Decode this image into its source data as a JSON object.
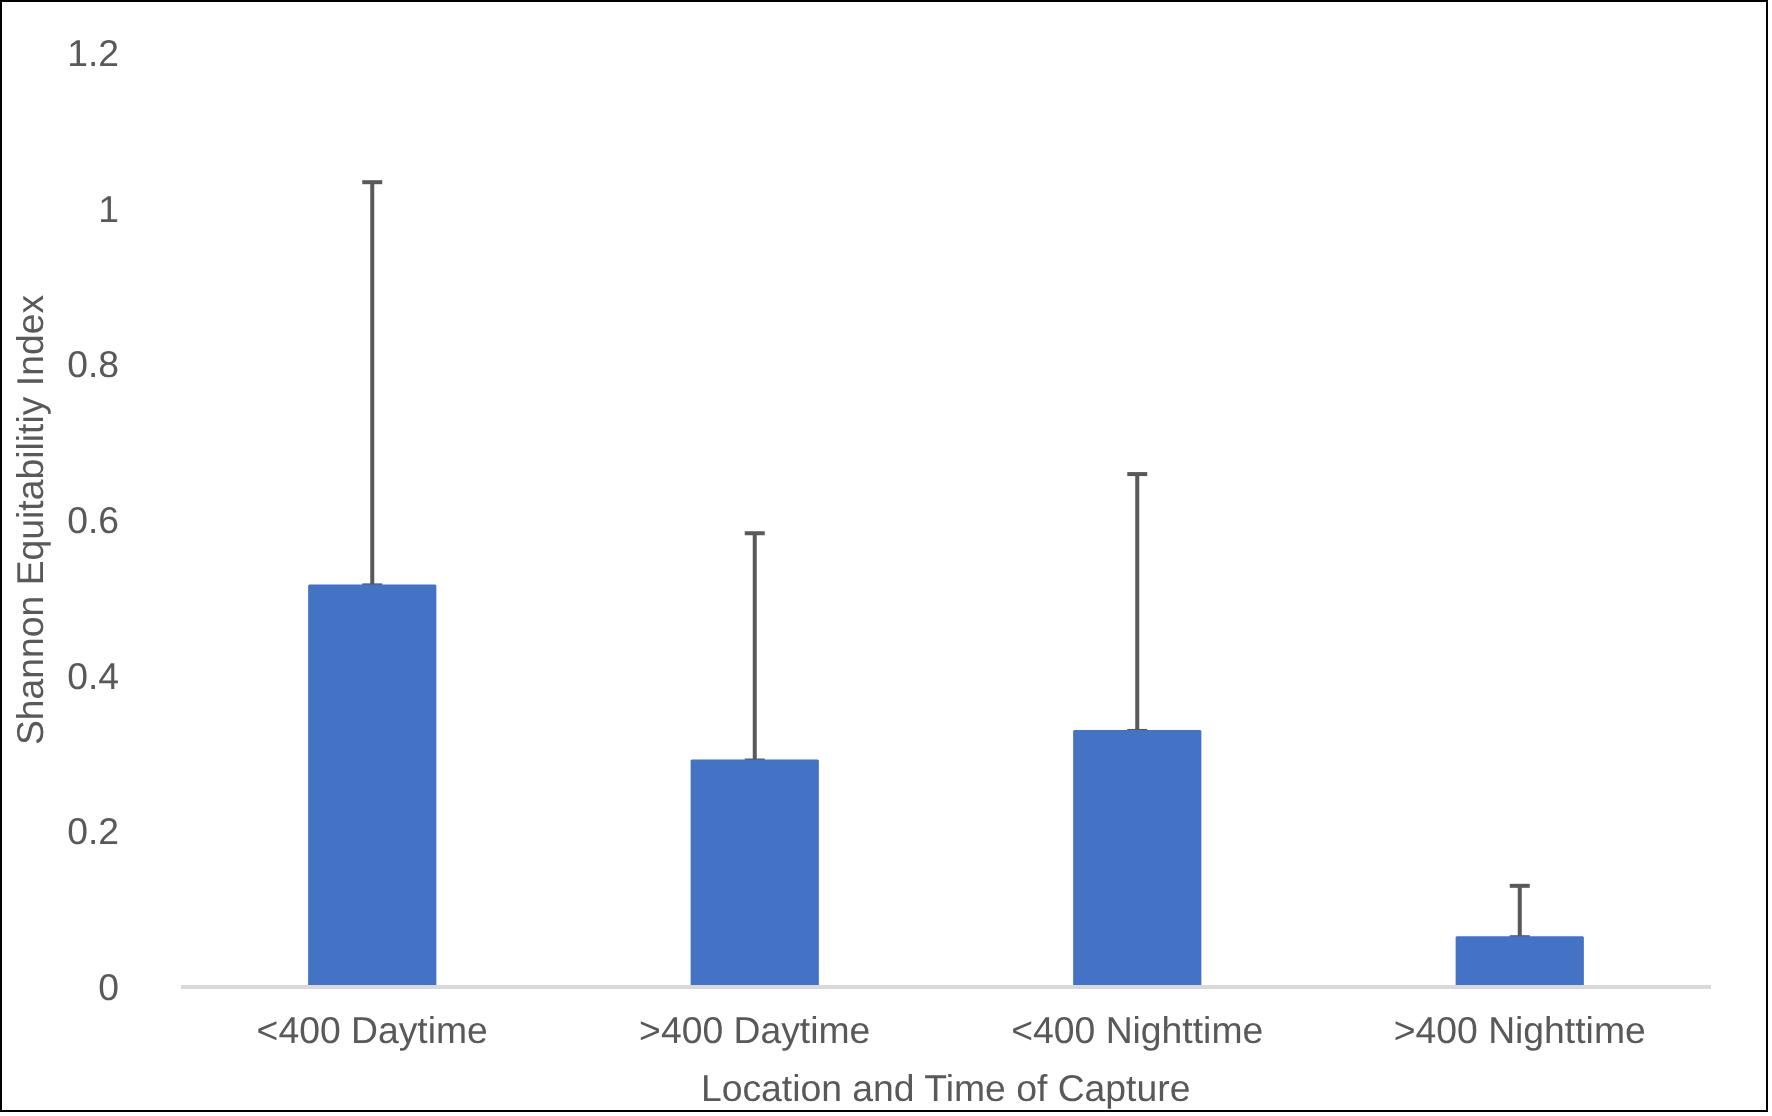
{
  "chart_data": {
    "type": "bar",
    "xlabel": "Location and Time of Capture",
    "ylabel": "Shannon Equitabilitiy Index",
    "categories": [
      "<400 Daytime",
      ">400 Daytime",
      "<400 Nighttime",
      ">400 Nighttime"
    ],
    "values": [
      0.516,
      0.291,
      0.329,
      0.064
    ],
    "errors": [
      [
        0.516,
        1.034
      ],
      [
        0.291,
        0.583
      ],
      [
        0.329,
        0.659
      ],
      [
        0.064,
        0.13
      ]
    ],
    "color": "#4472c4",
    "ylim": [
      0,
      1.2
    ],
    "yticks": [
      0,
      0.2,
      0.4,
      0.6,
      0.8,
      1,
      1.2
    ],
    "grid": false
  }
}
